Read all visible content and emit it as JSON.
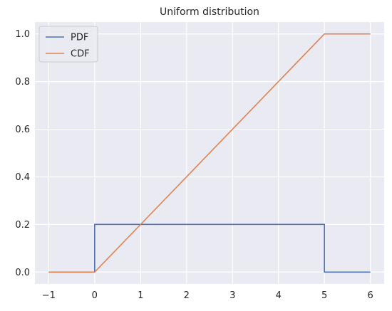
{
  "chart_data": {
    "type": "line",
    "title": "Uniform distribution",
    "xlabel": "",
    "ylabel": "",
    "xlim": [
      -1.3,
      6.3
    ],
    "ylim": [
      -0.05,
      1.05
    ],
    "x_ticks": [
      -1,
      0,
      1,
      2,
      3,
      4,
      5,
      6
    ],
    "x_tick_labels": [
      "−1",
      "0",
      "1",
      "2",
      "3",
      "4",
      "5",
      "6"
    ],
    "y_ticks": [
      0.0,
      0.2,
      0.4,
      0.6,
      0.8,
      1.0
    ],
    "y_tick_labels": [
      "0.0",
      "0.2",
      "0.4",
      "0.6",
      "0.8",
      "1.0"
    ],
    "grid": true,
    "legend_position": "top-left",
    "background_color": "#eaeaf2",
    "grid_color": "#ffffff",
    "series": [
      {
        "name": "PDF",
        "color": "#4c72b0",
        "x": [
          -1,
          0,
          0,
          5,
          5,
          6
        ],
        "y": [
          0,
          0,
          0.2,
          0.2,
          0,
          0
        ]
      },
      {
        "name": "CDF",
        "color": "#dd8452",
        "x": [
          -1,
          0,
          5,
          6
        ],
        "y": [
          0,
          0,
          1,
          1
        ]
      }
    ]
  }
}
